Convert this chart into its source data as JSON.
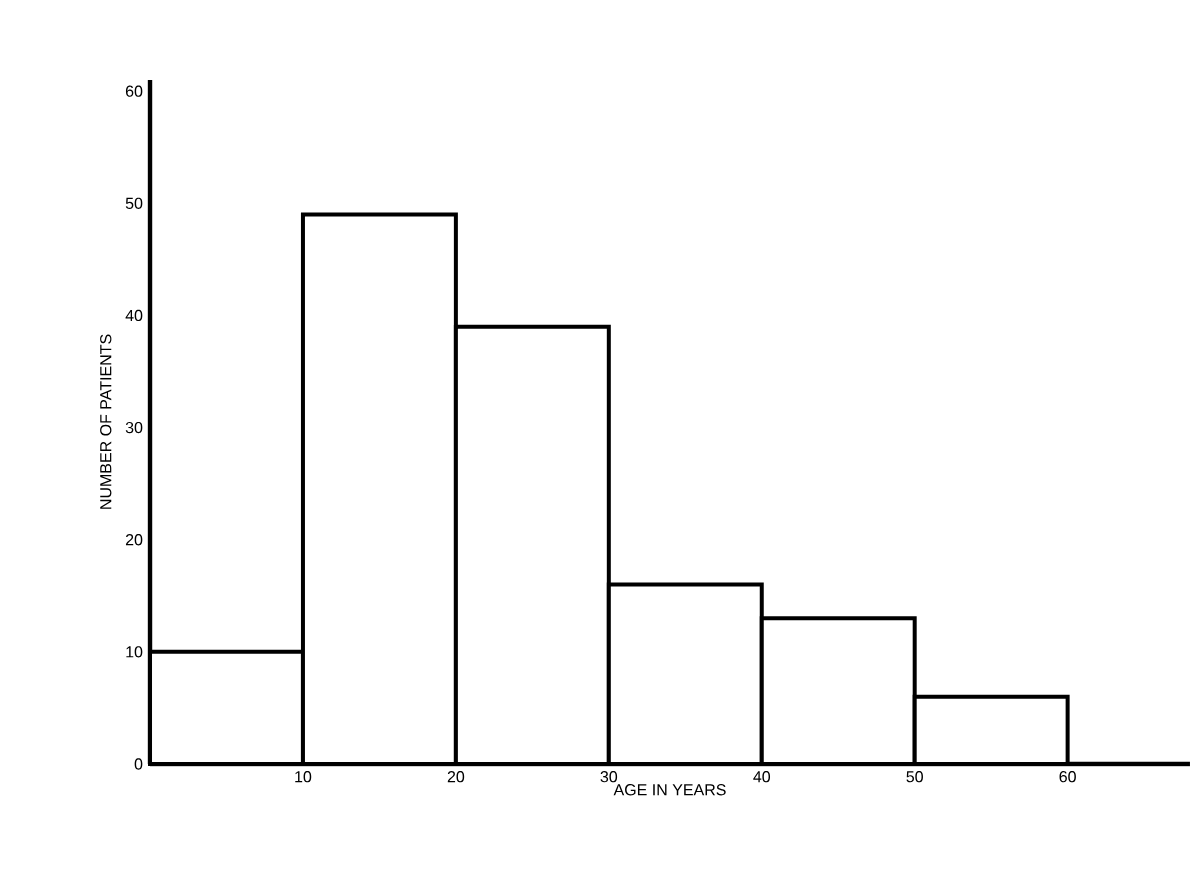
{
  "chart_data": {
    "type": "histogram",
    "xlabel": "AGE IN YEARS",
    "ylabel": "NUMBER OF PATIENTS",
    "bins": [
      0,
      10,
      20,
      30,
      40,
      50,
      60
    ],
    "values": [
      10,
      49,
      39,
      16,
      13,
      6
    ],
    "color": "#ffffff",
    "xlim": [
      0,
      68
    ],
    "ylim": [
      0,
      61
    ],
    "xticks": [
      10,
      20,
      30,
      40,
      50,
      60
    ],
    "yticks": [
      0,
      10,
      20,
      30,
      40,
      50,
      60
    ],
    "grid": false
  }
}
